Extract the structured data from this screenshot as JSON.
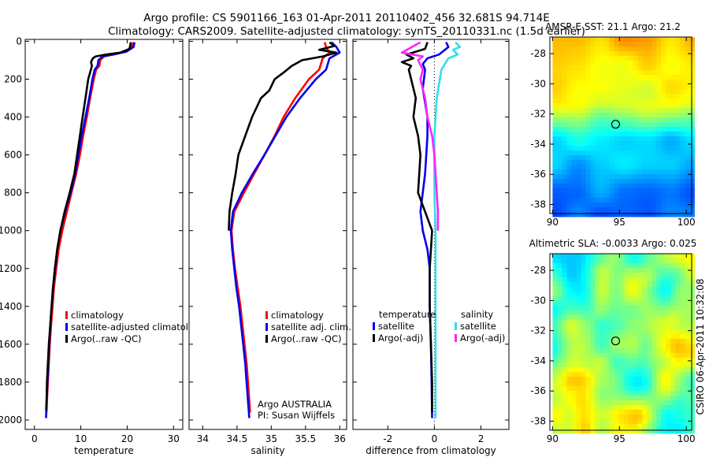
{
  "header": {
    "line1": "Argo profile: CS 5901166_163 01-Apr-2011 20110402_456 32.681S 94.714E",
    "line2": "Climatology: CARS2009. Satellite-adjusted climatology: synTS_20110331.nc (1.5d earlier)"
  },
  "side_label": "CSIRO 06-Apr-2011 10:32:08",
  "colors": {
    "red": "#ff0000",
    "blue": "#0000ee",
    "black": "#000000",
    "cyan": "#33ddee",
    "magenta": "#ff22ff"
  },
  "chart_data": [
    {
      "type": "line",
      "name": "temperature-panel",
      "xlabel": "temperature",
      "xlim": [
        -2,
        32
      ],
      "ylim": [
        2050,
        -10
      ],
      "xticks": [
        0,
        10,
        20,
        30
      ],
      "yticks": [
        0,
        200,
        400,
        600,
        800,
        1000,
        1200,
        1400,
        1600,
        1800,
        2000
      ],
      "legend": [
        "climatology",
        "satellite-adjusted climatolo",
        "Argo(..raw -QC)"
      ],
      "series": [
        {
          "name": "climatology",
          "color": "red",
          "points": [
            [
              21.3,
              5
            ],
            [
              21.0,
              30
            ],
            [
              19.5,
              55
            ],
            [
              17,
              70
            ],
            [
              15,
              80
            ],
            [
              14.2,
              100
            ],
            [
              14,
              130
            ],
            [
              13.3,
              150
            ],
            [
              12.8,
              200
            ],
            [
              12,
              300
            ],
            [
              11.3,
              400
            ],
            [
              10.5,
              500
            ],
            [
              9.8,
              600
            ],
            [
              9,
              700
            ],
            [
              8,
              800
            ],
            [
              7,
              900
            ],
            [
              6,
              1000
            ],
            [
              5.2,
              1100
            ],
            [
              4.7,
              1200
            ],
            [
              4.2,
              1300
            ],
            [
              3.9,
              1400
            ],
            [
              3.6,
              1500
            ],
            [
              3.3,
              1600
            ],
            [
              3.1,
              1700
            ],
            [
              2.9,
              1800
            ],
            [
              2.7,
              1900
            ],
            [
              2.6,
              1960
            ]
          ]
        },
        {
          "name": "satellite-adjusted climatolo",
          "color": "blue",
          "points": [
            [
              21.6,
              5
            ],
            [
              21.4,
              30
            ],
            [
              19.8,
              55
            ],
            [
              17,
              70
            ],
            [
              14.7,
              80
            ],
            [
              13.8,
              100
            ],
            [
              13.6,
              130
            ],
            [
              13,
              150
            ],
            [
              12.5,
              200
            ],
            [
              11.8,
              300
            ],
            [
              11,
              400
            ],
            [
              10.2,
              500
            ],
            [
              9.5,
              600
            ],
            [
              8.8,
              700
            ],
            [
              7.8,
              800
            ],
            [
              6.6,
              900
            ],
            [
              5.6,
              1000
            ],
            [
              4.9,
              1100
            ],
            [
              4.5,
              1200
            ],
            [
              4.0,
              1300
            ],
            [
              3.7,
              1400
            ],
            [
              3.4,
              1500
            ],
            [
              3.2,
              1600
            ],
            [
              3.0,
              1700
            ],
            [
              2.8,
              1800
            ],
            [
              2.6,
              1900
            ],
            [
              2.5,
              1990
            ]
          ]
        },
        {
          "name": "Argo(..raw -QC)",
          "color": "black",
          "points": [
            [
              20.8,
              5
            ],
            [
              20.5,
              40
            ],
            [
              18.5,
              60
            ],
            [
              15.5,
              70
            ],
            [
              13.2,
              80
            ],
            [
              12.6,
              90
            ],
            [
              12.2,
              110
            ],
            [
              12.4,
              130
            ],
            [
              11.6,
              200
            ],
            [
              11,
              300
            ],
            [
              10.4,
              400
            ],
            [
              9.8,
              500
            ],
            [
              9.2,
              600
            ],
            [
              8.6,
              700
            ],
            [
              7.6,
              800
            ],
            [
              6.5,
              900
            ],
            [
              5.6,
              1000
            ],
            [
              4.9,
              1100
            ],
            [
              4.4,
              1200
            ],
            [
              4.0,
              1300
            ],
            [
              3.7,
              1400
            ],
            [
              3.4,
              1500
            ],
            [
              3.1,
              1600
            ],
            [
              2.9,
              1700
            ],
            [
              2.7,
              1800
            ],
            [
              2.6,
              1900
            ],
            [
              2.5,
              1950
            ]
          ]
        }
      ]
    },
    {
      "type": "line",
      "name": "salinity-panel",
      "xlabel": "salinity",
      "xlim": [
        33.8,
        36.1
      ],
      "ylim": [
        2050,
        -10
      ],
      "xticks": [
        34,
        34.5,
        35,
        35.5,
        36
      ],
      "legend": [
        "climatology",
        "satellite adj. clim.",
        "Argo(..raw -QC)"
      ],
      "annotation": [
        "Argo AUSTRALIA",
        "PI: Susan Wijffels"
      ],
      "series": [
        {
          "name": "climatology",
          "color": "red",
          "points": [
            [
              35.78,
              5
            ],
            [
              35.8,
              30
            ],
            [
              35.85,
              60
            ],
            [
              35.75,
              90
            ],
            [
              35.7,
              150
            ],
            [
              35.55,
              200
            ],
            [
              35.35,
              300
            ],
            [
              35.18,
              400
            ],
            [
              35.05,
              500
            ],
            [
              34.9,
              600
            ],
            [
              34.75,
              700
            ],
            [
              34.6,
              800
            ],
            [
              34.46,
              900
            ],
            [
              34.42,
              1000
            ],
            [
              34.44,
              1100
            ],
            [
              34.47,
              1200
            ],
            [
              34.51,
              1300
            ],
            [
              34.55,
              1400
            ],
            [
              34.58,
              1500
            ],
            [
              34.61,
              1600
            ],
            [
              34.64,
              1700
            ],
            [
              34.66,
              1800
            ],
            [
              34.68,
              1900
            ],
            [
              34.69,
              1960
            ]
          ]
        },
        {
          "name": "satellite adj. clim.",
          "color": "blue",
          "points": [
            [
              35.88,
              5
            ],
            [
              35.95,
              30
            ],
            [
              36.0,
              60
            ],
            [
              35.85,
              90
            ],
            [
              35.8,
              150
            ],
            [
              35.65,
              200
            ],
            [
              35.42,
              300
            ],
            [
              35.22,
              400
            ],
            [
              35.06,
              500
            ],
            [
              34.9,
              600
            ],
            [
              34.73,
              700
            ],
            [
              34.57,
              800
            ],
            [
              34.44,
              900
            ],
            [
              34.41,
              1000
            ],
            [
              34.43,
              1100
            ],
            [
              34.46,
              1200
            ],
            [
              34.49,
              1300
            ],
            [
              34.53,
              1400
            ],
            [
              34.56,
              1500
            ],
            [
              34.59,
              1600
            ],
            [
              34.62,
              1700
            ],
            [
              34.64,
              1800
            ],
            [
              34.66,
              1900
            ],
            [
              34.68,
              1990
            ]
          ]
        },
        {
          "name": "Argo(..raw -QC)",
          "color": "black",
          "points": [
            [
              35.85,
              5
            ],
            [
              35.92,
              25
            ],
            [
              35.7,
              45
            ],
            [
              35.95,
              60
            ],
            [
              35.75,
              80
            ],
            [
              35.45,
              100
            ],
            [
              35.3,
              130
            ],
            [
              35.2,
              160
            ],
            [
              35.05,
              200
            ],
            [
              34.97,
              260
            ],
            [
              34.85,
              300
            ],
            [
              34.72,
              400
            ],
            [
              34.62,
              500
            ],
            [
              34.52,
              600
            ],
            [
              34.48,
              700
            ],
            [
              34.43,
              800
            ],
            [
              34.39,
              900
            ],
            [
              34.38,
              1000
            ]
          ]
        }
      ]
    },
    {
      "type": "line",
      "name": "difference-panel",
      "xlabel": "difference from climatology",
      "xlim": [
        -3.5,
        3.2
      ],
      "ylim": [
        2050,
        -10
      ],
      "xticks": [
        -2,
        0,
        2
      ],
      "legend_groups": [
        {
          "title": "temperature",
          "items": [
            "satellite",
            "Argo(-adj)"
          ]
        },
        {
          "title": "salinity",
          "items": [
            "satellite",
            "Argo(-adj)"
          ]
        }
      ],
      "series": [
        {
          "name": "temperature satellite",
          "color": "blue",
          "points": [
            [
              0.5,
              5
            ],
            [
              0.6,
              30
            ],
            [
              0.2,
              70
            ],
            [
              -0.3,
              90
            ],
            [
              -0.5,
              120
            ],
            [
              -0.4,
              150
            ],
            [
              -0.5,
              250
            ],
            [
              -0.3,
              400
            ],
            [
              -0.3,
              500
            ],
            [
              -0.4,
              700
            ],
            [
              -0.6,
              900
            ],
            [
              -0.5,
              1000
            ],
            [
              -0.3,
              1100
            ],
            [
              -0.2,
              1200
            ],
            [
              -0.2,
              1400
            ],
            [
              -0.15,
              1600
            ],
            [
              -0.12,
              1800
            ],
            [
              -0.1,
              1990
            ]
          ]
        },
        {
          "name": "temperature Argo(-adj)",
          "color": "black",
          "points": [
            [
              -0.3,
              5
            ],
            [
              -0.4,
              40
            ],
            [
              -1.2,
              70
            ],
            [
              -0.9,
              90
            ],
            [
              -1.4,
              110
            ],
            [
              -1.0,
              130
            ],
            [
              -1.1,
              150
            ],
            [
              -1.0,
              200
            ],
            [
              -0.8,
              300
            ],
            [
              -0.9,
              400
            ],
            [
              -0.7,
              500
            ],
            [
              -0.6,
              600
            ],
            [
              -0.7,
              800
            ],
            [
              -0.4,
              900
            ],
            [
              -0.1,
              1000
            ],
            [
              -0.2,
              1200
            ],
            [
              -0.2,
              1400
            ],
            [
              -0.15,
              1600
            ],
            [
              -0.1,
              1800
            ],
            [
              -0.1,
              1960
            ]
          ]
        },
        {
          "name": "salinity satellite",
          "color": "cyan",
          "points": [
            [
              0.9,
              5
            ],
            [
              1.1,
              30
            ],
            [
              0.8,
              45
            ],
            [
              1.0,
              70
            ],
            [
              0.6,
              90
            ],
            [
              0.3,
              150
            ],
            [
              0.1,
              300
            ],
            [
              0.0,
              500
            ],
            [
              0.0,
              800
            ],
            [
              0.05,
              1000
            ],
            [
              0.05,
              1400
            ],
            [
              0.05,
              1800
            ],
            [
              0.05,
              1990
            ]
          ]
        },
        {
          "name": "salinity Argo(-adj)",
          "color": "magenta",
          "points": [
            [
              -0.6,
              5
            ],
            [
              -1.4,
              60
            ],
            [
              -0.5,
              80
            ],
            [
              -0.7,
              100
            ],
            [
              -0.5,
              150
            ],
            [
              -0.6,
              200
            ],
            [
              -0.4,
              300
            ],
            [
              -0.3,
              400
            ],
            [
              -0.1,
              500
            ],
            [
              0.0,
              600
            ],
            [
              0.05,
              700
            ],
            [
              0.1,
              800
            ],
            [
              0.15,
              900
            ],
            [
              0.15,
              1000
            ]
          ]
        }
      ]
    },
    {
      "type": "heatmap",
      "name": "sst-map",
      "title": "AMSR-E SST: 21.1 Argo: 21.2",
      "xlim": [
        89.8,
        100.4
      ],
      "ylim": [
        -38.6,
        -26.9
      ],
      "xticks": [
        90,
        95,
        100
      ],
      "yticks": [
        -28,
        -30,
        -32,
        -34,
        -36,
        -38
      ],
      "marker": [
        94.714,
        -32.681
      ]
    },
    {
      "type": "heatmap",
      "name": "sla-map",
      "title": "Altimetric SLA: -0.0033 Argo: 0.025",
      "xlim": [
        89.8,
        100.4
      ],
      "ylim": [
        -38.6,
        -26.9
      ],
      "xticks": [
        90,
        95,
        100
      ],
      "yticks": [
        -28,
        -30,
        -32,
        -34,
        -36,
        -38
      ],
      "marker": [
        94.714,
        -32.681
      ]
    }
  ]
}
